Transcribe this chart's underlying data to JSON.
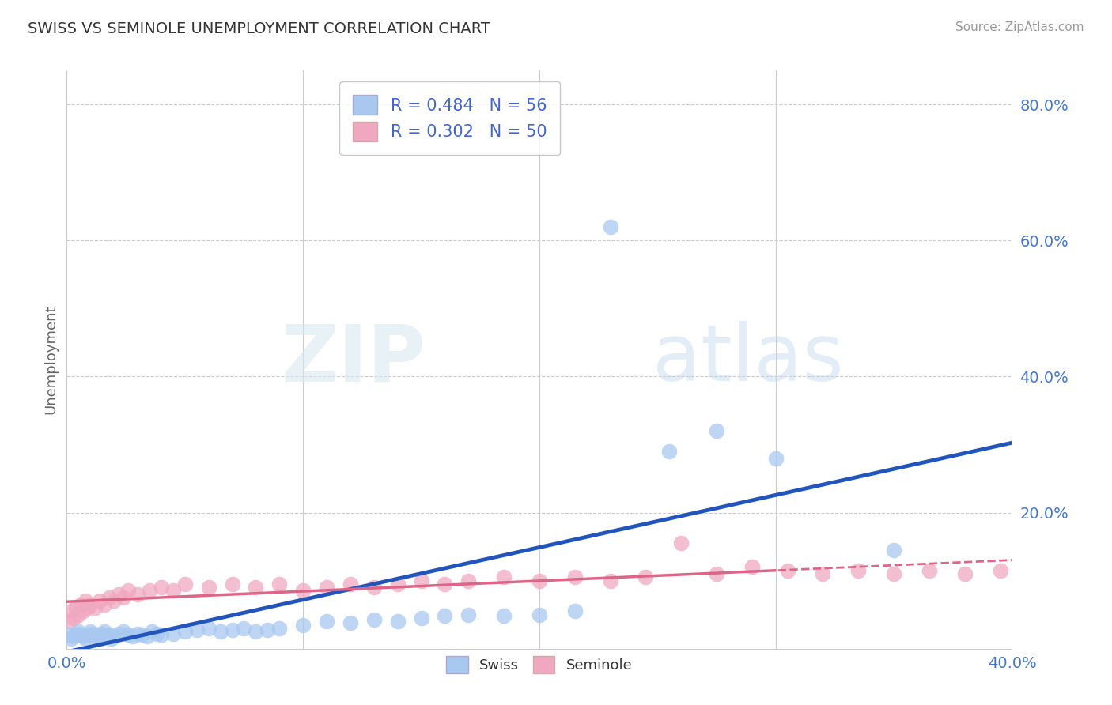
{
  "title": "SWISS VS SEMINOLE UNEMPLOYMENT CORRELATION CHART",
  "source": "Source: ZipAtlas.com",
  "ylabel": "Unemployment",
  "xlim": [
    0.0,
    0.4
  ],
  "ylim": [
    0.0,
    0.85
  ],
  "yticks": [
    0.2,
    0.4,
    0.6,
    0.8
  ],
  "ytick_labels": [
    "20.0%",
    "40.0%",
    "60.0%",
    "80.0%"
  ],
  "xticks": [
    0.0,
    0.1,
    0.2,
    0.3,
    0.4
  ],
  "xtick_labels": [
    "0.0%",
    "",
    "",
    "",
    "40.0%"
  ],
  "swiss_color": "#a8c8f0",
  "seminole_color": "#f0a8c0",
  "swiss_line_color": "#2255bb",
  "seminole_line_color": "#dd6688",
  "swiss_R": 0.484,
  "swiss_N": 56,
  "seminole_R": 0.302,
  "seminole_N": 50,
  "background_color": "#ffffff",
  "grid_color": "#cccccc",
  "swiss_x": [
    0.001,
    0.002,
    0.003,
    0.004,
    0.005,
    0.006,
    0.007,
    0.008,
    0.009,
    0.01,
    0.011,
    0.012,
    0.013,
    0.014,
    0.015,
    0.016,
    0.017,
    0.018,
    0.019,
    0.02,
    0.022,
    0.024,
    0.026,
    0.028,
    0.03,
    0.032,
    0.034,
    0.036,
    0.038,
    0.04,
    0.045,
    0.05,
    0.055,
    0.06,
    0.065,
    0.07,
    0.075,
    0.08,
    0.085,
    0.09,
    0.1,
    0.11,
    0.12,
    0.13,
    0.14,
    0.15,
    0.16,
    0.17,
    0.185,
    0.2,
    0.215,
    0.23,
    0.255,
    0.275,
    0.3,
    0.35
  ],
  "swiss_y": [
    0.02,
    0.015,
    0.018,
    0.022,
    0.025,
    0.02,
    0.018,
    0.015,
    0.02,
    0.025,
    0.022,
    0.018,
    0.02,
    0.015,
    0.022,
    0.025,
    0.018,
    0.02,
    0.015,
    0.018,
    0.022,
    0.025,
    0.02,
    0.018,
    0.022,
    0.02,
    0.018,
    0.025,
    0.022,
    0.02,
    0.022,
    0.025,
    0.028,
    0.03,
    0.025,
    0.028,
    0.03,
    0.025,
    0.028,
    0.03,
    0.035,
    0.04,
    0.038,
    0.042,
    0.04,
    0.045,
    0.048,
    0.05,
    0.048,
    0.05,
    0.055,
    0.62,
    0.29,
    0.32,
    0.28,
    0.145
  ],
  "seminole_x": [
    0.001,
    0.002,
    0.003,
    0.004,
    0.005,
    0.006,
    0.007,
    0.008,
    0.009,
    0.01,
    0.012,
    0.014,
    0.016,
    0.018,
    0.02,
    0.022,
    0.024,
    0.026,
    0.03,
    0.035,
    0.04,
    0.045,
    0.05,
    0.06,
    0.07,
    0.08,
    0.09,
    0.1,
    0.11,
    0.12,
    0.13,
    0.14,
    0.15,
    0.16,
    0.17,
    0.185,
    0.2,
    0.215,
    0.23,
    0.245,
    0.26,
    0.275,
    0.29,
    0.305,
    0.32,
    0.335,
    0.35,
    0.365,
    0.38,
    0.395
  ],
  "seminole_y": [
    0.04,
    0.055,
    0.045,
    0.06,
    0.05,
    0.065,
    0.055,
    0.07,
    0.06,
    0.065,
    0.06,
    0.07,
    0.065,
    0.075,
    0.07,
    0.08,
    0.075,
    0.085,
    0.08,
    0.085,
    0.09,
    0.085,
    0.095,
    0.09,
    0.095,
    0.09,
    0.095,
    0.085,
    0.09,
    0.095,
    0.09,
    0.095,
    0.1,
    0.095,
    0.1,
    0.105,
    0.1,
    0.105,
    0.1,
    0.105,
    0.155,
    0.11,
    0.12,
    0.115,
    0.11,
    0.115,
    0.11,
    0.115,
    0.11,
    0.115
  ]
}
